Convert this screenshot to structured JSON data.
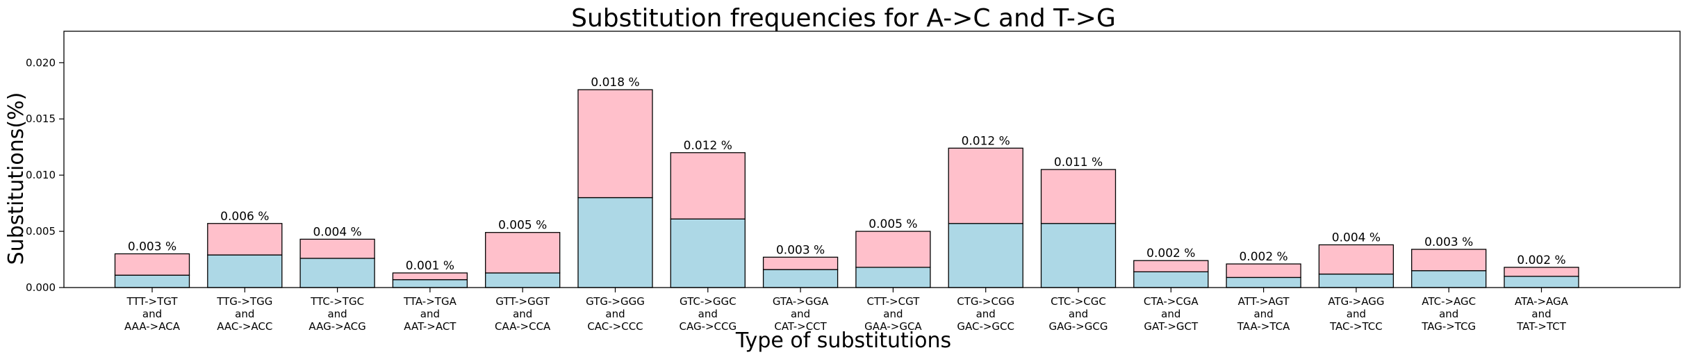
{
  "chart_data": {
    "type": "bar",
    "stacked": true,
    "title": "Substitution frequencies for A->C and T->G",
    "xlabel": "Type of substitutions",
    "ylabel": "Substitutions(%)",
    "ylim": [
      0,
      0.0228
    ],
    "yticks": [
      0.0,
      0.005,
      0.01,
      0.015,
      0.02
    ],
    "ytick_labels": [
      "0.000",
      "0.005",
      "0.010",
      "0.015",
      "0.020"
    ],
    "grid": false,
    "categories": [
      [
        "TTT->TGT",
        "and",
        "AAA->ACA"
      ],
      [
        "TTG->TGG",
        "and",
        "AAC->ACC"
      ],
      [
        "TTC->TGC",
        "and",
        "AAG->ACG"
      ],
      [
        "TTA->TGA",
        "and",
        "AAT->ACT"
      ],
      [
        "GTT->GGT",
        "and",
        "CAA->CCA"
      ],
      [
        "GTG->GGG",
        "and",
        "CAC->CCC"
      ],
      [
        "GTC->GGC",
        "and",
        "CAG->CCG"
      ],
      [
        "GTA->GGA",
        "and",
        "CAT->CCT"
      ],
      [
        "CTT->CGT",
        "and",
        "GAA->GCA"
      ],
      [
        "CTG->CGG",
        "and",
        "GAC->GCC"
      ],
      [
        "CTC->CGC",
        "and",
        "GAG->GCG"
      ],
      [
        "CTA->CGA",
        "and",
        "GAT->GCT"
      ],
      [
        "ATT->AGT",
        "and",
        "TAA->TCA"
      ],
      [
        "ATG->AGG",
        "and",
        "TAC->TCC"
      ],
      [
        "ATC->AGC",
        "and",
        "TAG->TCG"
      ],
      [
        "ATA->AGA",
        "and",
        "TAT->TCT"
      ]
    ],
    "series": [
      {
        "name": "bottom",
        "color": "#add8e6",
        "values": [
          0.0011,
          0.0029,
          0.0026,
          0.0007,
          0.0013,
          0.008,
          0.0061,
          0.0016,
          0.0018,
          0.0057,
          0.0057,
          0.0014,
          0.0009,
          0.0012,
          0.0015,
          0.001
        ]
      },
      {
        "name": "top",
        "color": "#ffc0cb",
        "values": [
          0.0019,
          0.0028,
          0.0017,
          0.0006,
          0.0036,
          0.0096,
          0.0059,
          0.0011,
          0.0032,
          0.0067,
          0.0048,
          0.001,
          0.0012,
          0.0026,
          0.0019,
          0.0008
        ]
      }
    ],
    "data_labels": [
      "0.003 %",
      "0.006 %",
      "0.004 %",
      "0.001 %",
      "0.005 %",
      "0.018 %",
      "0.012 %",
      "0.003 %",
      "0.005 %",
      "0.012 %",
      "0.011 %",
      "0.002 %",
      "0.002 %",
      "0.004 %",
      "0.003 %",
      "0.002 %"
    ]
  }
}
